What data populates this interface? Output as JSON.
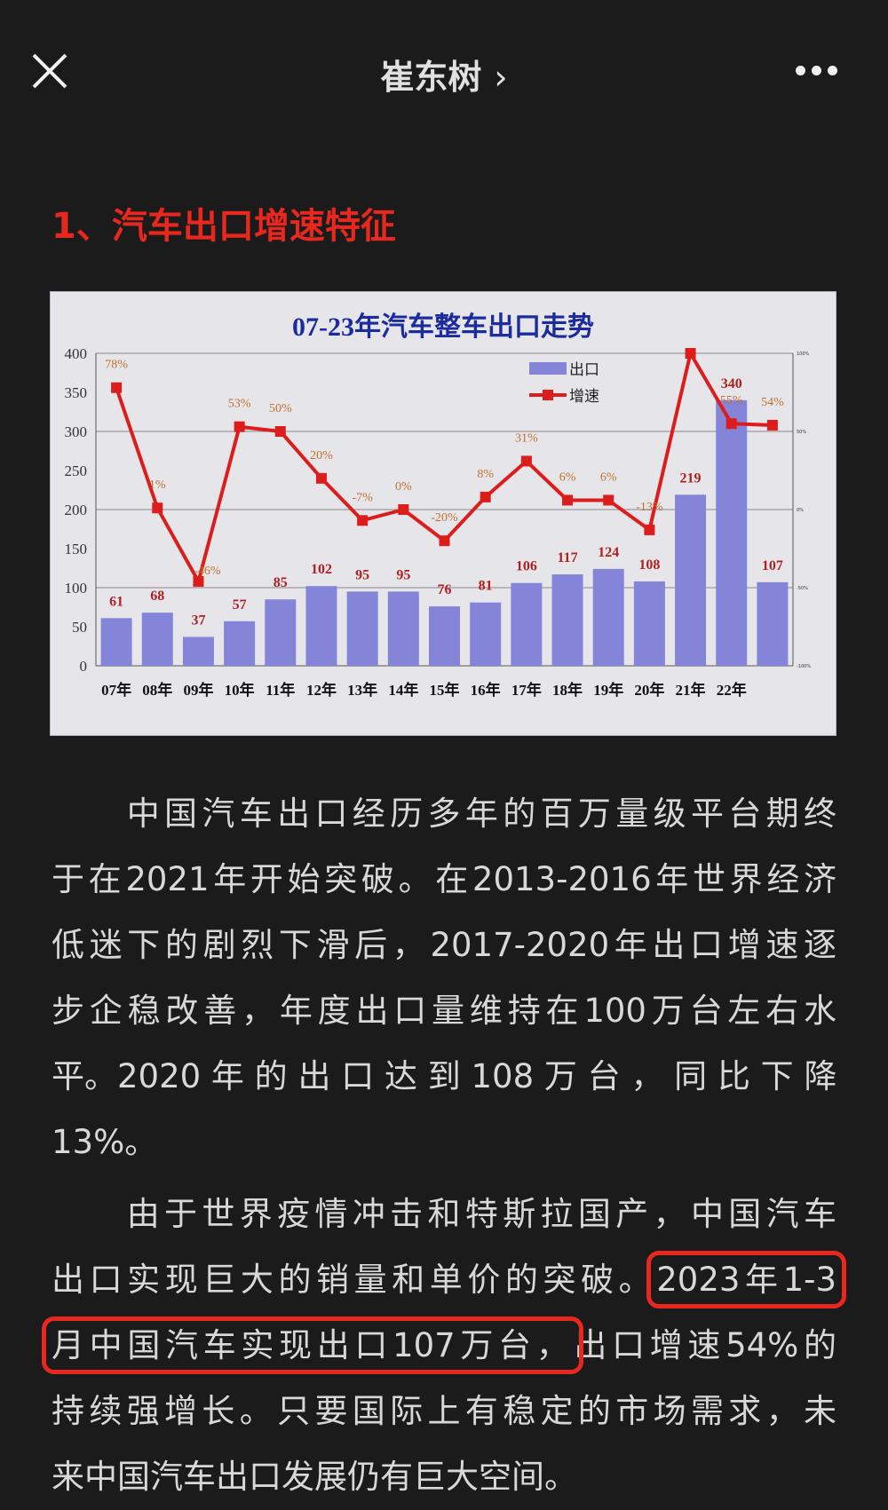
{
  "header": {
    "title": "崔东树",
    "chevron": "›",
    "close_icon": "close-icon",
    "more_icon": "more-icon"
  },
  "heading": "1、汽车出口增速特征",
  "chart_data": {
    "type": "bar+line",
    "title": "07-23年汽车整车出口走势",
    "categories": [
      "07年",
      "08年",
      "09年",
      "10年",
      "11年",
      "12年",
      "13年",
      "14年",
      "15年",
      "16年",
      "17年",
      "18年",
      "19年",
      "20年",
      "21年",
      "22年",
      ""
    ],
    "series": [
      {
        "name": "出口",
        "type": "bar",
        "axis": "left",
        "color": "#8484d8",
        "values": [
          61,
          68,
          37,
          57,
          85,
          102,
          95,
          95,
          76,
          81,
          106,
          117,
          124,
          108,
          219,
          340,
          107
        ],
        "labels": [
          "61",
          "68",
          "37",
          "57",
          "85",
          "102",
          "95",
          "95",
          "76",
          "81",
          "106",
          "117",
          "124",
          "108",
          "219",
          "340",
          "107"
        ]
      },
      {
        "name": "增速",
        "type": "line",
        "axis": "right",
        "color": "#dd1c1c",
        "values": [
          78,
          1,
          -46,
          53,
          50,
          20,
          -7,
          0,
          -20,
          8,
          31,
          6,
          6,
          -13,
          100,
          55,
          54
        ],
        "labels": [
          "78%",
          "1%",
          "-46%",
          "53%",
          "50%",
          "20%",
          "-7%",
          "0%",
          "-20%",
          "8%",
          "31%",
          "6%",
          "6%",
          "-13%",
          "",
          "55%",
          "54%"
        ]
      }
    ],
    "y_left": {
      "lim": [
        0,
        400
      ],
      "ticks": [
        "0",
        "50",
        "100",
        "150",
        "200",
        "250",
        "300",
        "350",
        "400"
      ]
    },
    "y_right": {
      "lim": [
        -100,
        100
      ],
      "ticks": [
        "-100%",
        "-50%",
        "0%",
        "50%",
        "100%"
      ]
    },
    "grid": "horizontal",
    "legend": "top-center-right"
  },
  "article": {
    "paragraphs": [
      {
        "lines": [
          "　　中国汽车出口经历多年的百万量级平台期终",
          "于在2021年开始突破。在2013-2016年世界经济",
          "低迷下的剧烈下滑后，2017-2020年出口增速逐",
          "步企稳改善，年度出口量维持在100万台左右水",
          "平。2020 年 的 出 口 达 到 108 万 台 ， 同 比 下 降",
          "13%。"
        ]
      },
      {
        "lines": [
          "　　由于世界疫情冲击和特斯拉国产，中国汽车"
        ],
        "line2": {
          "plain": "出口实现巨大的销量和单价的突破。",
          "boxed": "2023年1-3"
        },
        "line3": {
          "boxed": "月中国汽车实现出口107万台，",
          "plain": "出口增速54%的"
        },
        "rest": [
          "持续强增长。只要国际上有稳定的市场需求，未",
          "来中国汽车出口发展仍有巨大空间。"
        ]
      }
    ]
  },
  "colors": {
    "background": "#1b1b1b",
    "heading": "#e8281e",
    "highlight_box": "#e8281e",
    "chart_title": "#1c2c9c",
    "pct_label": "#c0702c",
    "bar_label": "#b02020"
  }
}
